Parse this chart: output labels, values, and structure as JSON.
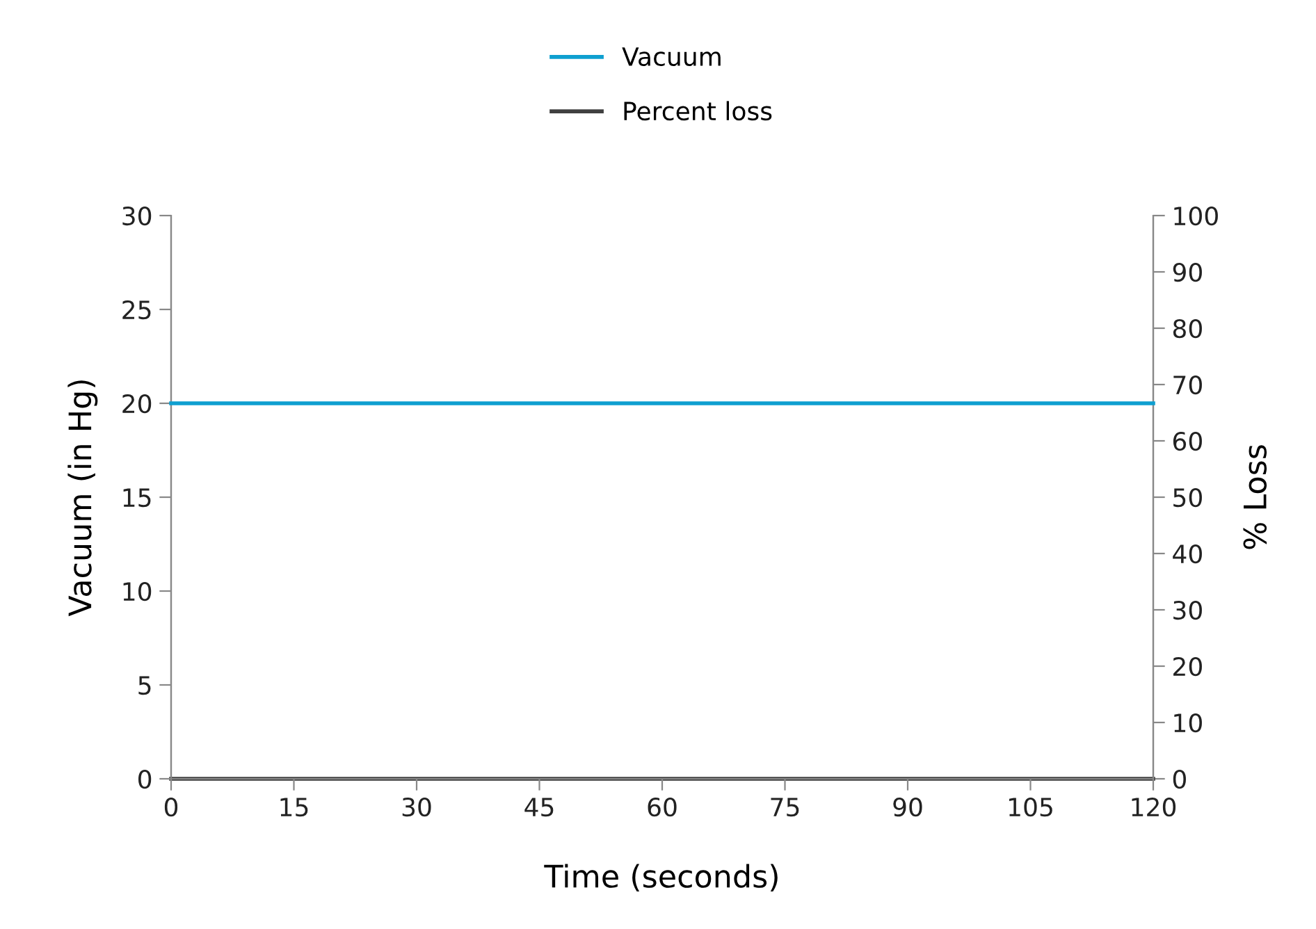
{
  "chart_data": {
    "type": "line",
    "xlabel": "Time (seconds)",
    "ylabel": "Vacuum (in Hg)",
    "y2label": "% Loss",
    "x": [
      0,
      120
    ],
    "series": [
      {
        "name": "Vacuum",
        "color": "#0e9fd0",
        "values": [
          20,
          20
        ]
      },
      {
        "name": "Percent loss",
        "color": "#404040",
        "values": [
          0,
          0
        ],
        "axis": "y2"
      }
    ],
    "xlim": [
      0,
      120
    ],
    "xticks": [
      0,
      15,
      30,
      45,
      60,
      75,
      90,
      105,
      120
    ],
    "ylim": [
      0,
      30
    ],
    "yticks": [
      0,
      5,
      10,
      15,
      20,
      25,
      30
    ],
    "y2lim": [
      0,
      100
    ],
    "y2ticks": [
      0,
      10,
      20,
      30,
      40,
      50,
      60,
      70,
      80,
      90,
      100
    ],
    "grid": false,
    "legend": "top",
    "line_style": "solid"
  }
}
